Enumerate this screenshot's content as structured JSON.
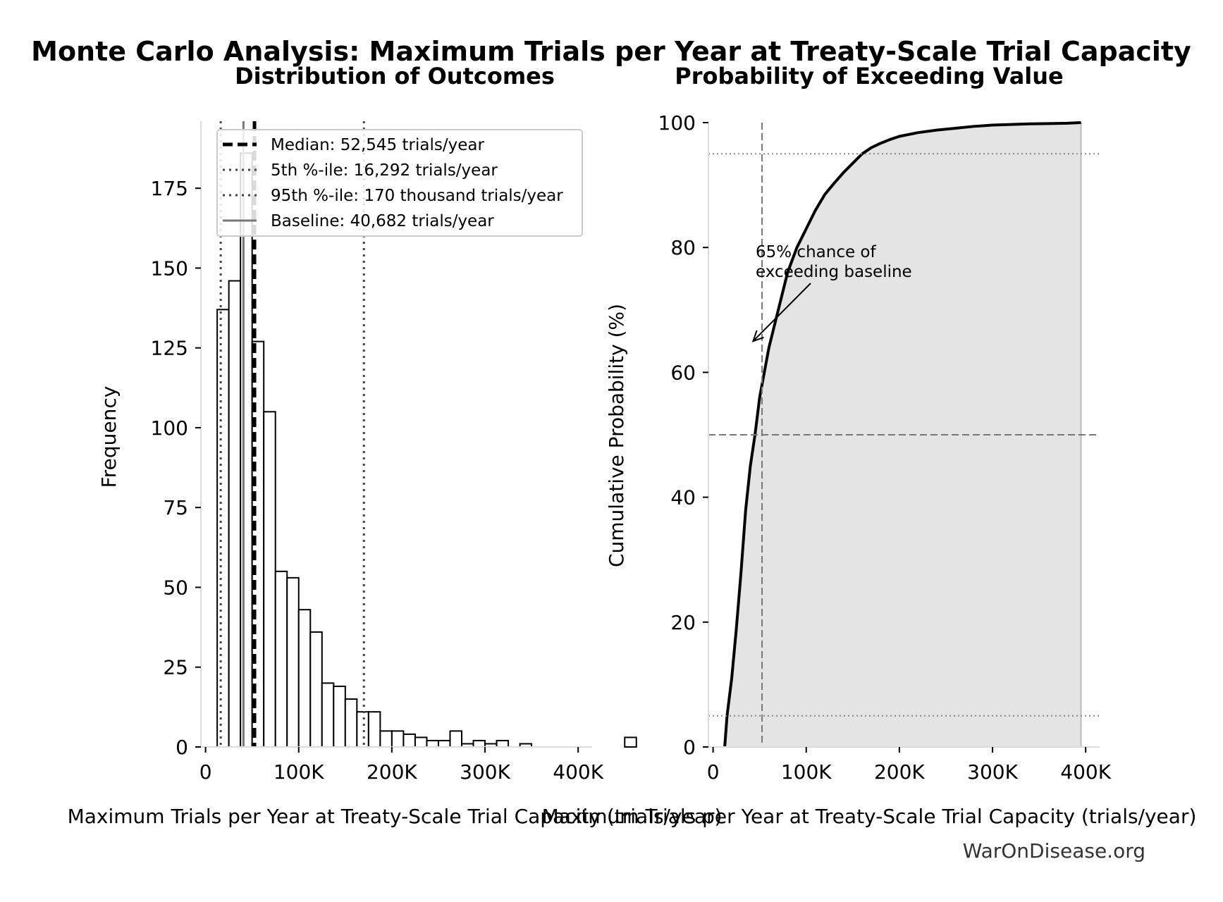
{
  "title": "Monte Carlo Analysis: Maximum Trials per Year at Treaty-Scale Trial Capacity",
  "credit": "WarOnDisease.org",
  "chart_data": [
    {
      "type": "bar",
      "subtitle": "Distribution of Outcomes",
      "xlabel": "Maximum Trials per Year at Treaty-Scale Trial Capacity (trials/year)",
      "ylabel": "Frequency",
      "xlim": [
        -5000,
        415000
      ],
      "ylim": [
        0,
        196
      ],
      "xticks": [
        0,
        100000,
        200000,
        300000,
        400000
      ],
      "xtick_labels": [
        "0",
        "100K",
        "200K",
        "300K",
        "400K"
      ],
      "yticks": [
        0,
        25,
        50,
        75,
        100,
        125,
        150,
        175
      ],
      "bin_start": 12500,
      "bin_width": 12500,
      "values": [
        137,
        146,
        186,
        127,
        105,
        55,
        53,
        43,
        36,
        20,
        19,
        15,
        11,
        11,
        5,
        5,
        4,
        3,
        2,
        2,
        5,
        1,
        2,
        1,
        2,
        0,
        1,
        0,
        0,
        0,
        0,
        0,
        0,
        0,
        0,
        3
      ],
      "bar_fill": "#ffffff",
      "bar_edge": "#000000",
      "reference_lines": [
        {
          "label": "Median: 52,545 trials/year",
          "x": 52545,
          "style": "dashed",
          "color": "#000000"
        },
        {
          "label": "5th %-ile: 16,292 trials/year",
          "x": 16292,
          "style": "dotted",
          "color": "#444444"
        },
        {
          "label": "95th %-ile: 170 thousand trials/year",
          "x": 170000,
          "style": "dotted",
          "color": "#444444"
        },
        {
          "label": "Baseline: 40,682 trials/year",
          "x": 40682,
          "style": "solid",
          "color": "#777777"
        }
      ],
      "legend": "upper-right"
    },
    {
      "type": "area",
      "subtitle": "Probability of Exceeding Value",
      "xlabel": "Maximum Trials per Year at Treaty-Scale Trial Capacity (trials/year)",
      "ylabel": "Cumulative Probability (%)",
      "xlim": [
        -5000,
        415000
      ],
      "ylim": [
        0,
        100
      ],
      "xticks": [
        0,
        100000,
        200000,
        300000,
        400000
      ],
      "xtick_labels": [
        "0",
        "100K",
        "200K",
        "300K",
        "400K"
      ],
      "yticks": [
        0,
        20,
        40,
        60,
        80,
        100
      ],
      "x": [
        12500,
        15000,
        20000,
        25000,
        30000,
        35000,
        40000,
        45000,
        50000,
        55000,
        60000,
        65000,
        70000,
        75000,
        80000,
        90000,
        100000,
        110000,
        120000,
        130000,
        140000,
        150000,
        160000,
        170000,
        180000,
        190000,
        200000,
        220000,
        240000,
        260000,
        280000,
        300000,
        320000,
        340000,
        360000,
        380000,
        395000
      ],
      "y": [
        0,
        5,
        11,
        19,
        28,
        38,
        45,
        50,
        56,
        60,
        64,
        67,
        70,
        73,
        76,
        80,
        83,
        86,
        88.5,
        90.3,
        92,
        93.5,
        95,
        96,
        96.7,
        97.3,
        97.8,
        98.4,
        98.8,
        99.1,
        99.4,
        99.6,
        99.7,
        99.8,
        99.85,
        99.9,
        100
      ],
      "line_color": "#000000",
      "fill_color": "#e4e4e4",
      "hlines": [
        {
          "y": 95,
          "style": "dotted",
          "color": "#888888"
        },
        {
          "y": 50,
          "style": "dashed",
          "color": "#777777"
        },
        {
          "y": 5,
          "style": "dotted",
          "color": "#888888"
        }
      ],
      "vline": {
        "x": 52545,
        "style": "dashed",
        "color": "#777777"
      },
      "annotation": {
        "text": [
          "65% chance of",
          "exceeding baseline"
        ],
        "x_target": 43000,
        "y_target": 65
      }
    }
  ]
}
